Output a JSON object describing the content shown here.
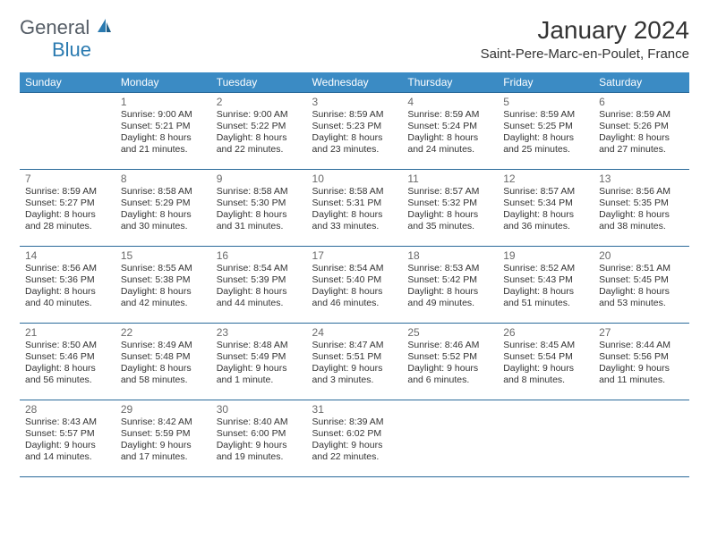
{
  "brand": {
    "general": "General",
    "blue": "Blue"
  },
  "title": "January 2024",
  "location": "Saint-Pere-Marc-en-Poulet, France",
  "colors": {
    "header_bg": "#3b8bc4",
    "header_text": "#ffffff",
    "rule": "#2a6a9a",
    "daynum": "#6a6a6a",
    "body_text": "#333333",
    "logo_gray": "#555d66",
    "logo_blue": "#2a7ab0",
    "page_bg": "#ffffff"
  },
  "typography": {
    "title_fontsize": 28,
    "location_fontsize": 15,
    "dayheader_fontsize": 12,
    "daynum_fontsize": 12,
    "cell_fontsize": 10.5
  },
  "day_headers": [
    "Sunday",
    "Monday",
    "Tuesday",
    "Wednesday",
    "Thursday",
    "Friday",
    "Saturday"
  ],
  "weeks": [
    [
      null,
      {
        "n": "1",
        "sr": "Sunrise: 9:00 AM",
        "ss": "Sunset: 5:21 PM",
        "d1": "Daylight: 8 hours",
        "d2": "and 21 minutes."
      },
      {
        "n": "2",
        "sr": "Sunrise: 9:00 AM",
        "ss": "Sunset: 5:22 PM",
        "d1": "Daylight: 8 hours",
        "d2": "and 22 minutes."
      },
      {
        "n": "3",
        "sr": "Sunrise: 8:59 AM",
        "ss": "Sunset: 5:23 PM",
        "d1": "Daylight: 8 hours",
        "d2": "and 23 minutes."
      },
      {
        "n": "4",
        "sr": "Sunrise: 8:59 AM",
        "ss": "Sunset: 5:24 PM",
        "d1": "Daylight: 8 hours",
        "d2": "and 24 minutes."
      },
      {
        "n": "5",
        "sr": "Sunrise: 8:59 AM",
        "ss": "Sunset: 5:25 PM",
        "d1": "Daylight: 8 hours",
        "d2": "and 25 minutes."
      },
      {
        "n": "6",
        "sr": "Sunrise: 8:59 AM",
        "ss": "Sunset: 5:26 PM",
        "d1": "Daylight: 8 hours",
        "d2": "and 27 minutes."
      }
    ],
    [
      {
        "n": "7",
        "sr": "Sunrise: 8:59 AM",
        "ss": "Sunset: 5:27 PM",
        "d1": "Daylight: 8 hours",
        "d2": "and 28 minutes."
      },
      {
        "n": "8",
        "sr": "Sunrise: 8:58 AM",
        "ss": "Sunset: 5:29 PM",
        "d1": "Daylight: 8 hours",
        "d2": "and 30 minutes."
      },
      {
        "n": "9",
        "sr": "Sunrise: 8:58 AM",
        "ss": "Sunset: 5:30 PM",
        "d1": "Daylight: 8 hours",
        "d2": "and 31 minutes."
      },
      {
        "n": "10",
        "sr": "Sunrise: 8:58 AM",
        "ss": "Sunset: 5:31 PM",
        "d1": "Daylight: 8 hours",
        "d2": "and 33 minutes."
      },
      {
        "n": "11",
        "sr": "Sunrise: 8:57 AM",
        "ss": "Sunset: 5:32 PM",
        "d1": "Daylight: 8 hours",
        "d2": "and 35 minutes."
      },
      {
        "n": "12",
        "sr": "Sunrise: 8:57 AM",
        "ss": "Sunset: 5:34 PM",
        "d1": "Daylight: 8 hours",
        "d2": "and 36 minutes."
      },
      {
        "n": "13",
        "sr": "Sunrise: 8:56 AM",
        "ss": "Sunset: 5:35 PM",
        "d1": "Daylight: 8 hours",
        "d2": "and 38 minutes."
      }
    ],
    [
      {
        "n": "14",
        "sr": "Sunrise: 8:56 AM",
        "ss": "Sunset: 5:36 PM",
        "d1": "Daylight: 8 hours",
        "d2": "and 40 minutes."
      },
      {
        "n": "15",
        "sr": "Sunrise: 8:55 AM",
        "ss": "Sunset: 5:38 PM",
        "d1": "Daylight: 8 hours",
        "d2": "and 42 minutes."
      },
      {
        "n": "16",
        "sr": "Sunrise: 8:54 AM",
        "ss": "Sunset: 5:39 PM",
        "d1": "Daylight: 8 hours",
        "d2": "and 44 minutes."
      },
      {
        "n": "17",
        "sr": "Sunrise: 8:54 AM",
        "ss": "Sunset: 5:40 PM",
        "d1": "Daylight: 8 hours",
        "d2": "and 46 minutes."
      },
      {
        "n": "18",
        "sr": "Sunrise: 8:53 AM",
        "ss": "Sunset: 5:42 PM",
        "d1": "Daylight: 8 hours",
        "d2": "and 49 minutes."
      },
      {
        "n": "19",
        "sr": "Sunrise: 8:52 AM",
        "ss": "Sunset: 5:43 PM",
        "d1": "Daylight: 8 hours",
        "d2": "and 51 minutes."
      },
      {
        "n": "20",
        "sr": "Sunrise: 8:51 AM",
        "ss": "Sunset: 5:45 PM",
        "d1": "Daylight: 8 hours",
        "d2": "and 53 minutes."
      }
    ],
    [
      {
        "n": "21",
        "sr": "Sunrise: 8:50 AM",
        "ss": "Sunset: 5:46 PM",
        "d1": "Daylight: 8 hours",
        "d2": "and 56 minutes."
      },
      {
        "n": "22",
        "sr": "Sunrise: 8:49 AM",
        "ss": "Sunset: 5:48 PM",
        "d1": "Daylight: 8 hours",
        "d2": "and 58 minutes."
      },
      {
        "n": "23",
        "sr": "Sunrise: 8:48 AM",
        "ss": "Sunset: 5:49 PM",
        "d1": "Daylight: 9 hours",
        "d2": "and 1 minute."
      },
      {
        "n": "24",
        "sr": "Sunrise: 8:47 AM",
        "ss": "Sunset: 5:51 PM",
        "d1": "Daylight: 9 hours",
        "d2": "and 3 minutes."
      },
      {
        "n": "25",
        "sr": "Sunrise: 8:46 AM",
        "ss": "Sunset: 5:52 PM",
        "d1": "Daylight: 9 hours",
        "d2": "and 6 minutes."
      },
      {
        "n": "26",
        "sr": "Sunrise: 8:45 AM",
        "ss": "Sunset: 5:54 PM",
        "d1": "Daylight: 9 hours",
        "d2": "and 8 minutes."
      },
      {
        "n": "27",
        "sr": "Sunrise: 8:44 AM",
        "ss": "Sunset: 5:56 PM",
        "d1": "Daylight: 9 hours",
        "d2": "and 11 minutes."
      }
    ],
    [
      {
        "n": "28",
        "sr": "Sunrise: 8:43 AM",
        "ss": "Sunset: 5:57 PM",
        "d1": "Daylight: 9 hours",
        "d2": "and 14 minutes."
      },
      {
        "n": "29",
        "sr": "Sunrise: 8:42 AM",
        "ss": "Sunset: 5:59 PM",
        "d1": "Daylight: 9 hours",
        "d2": "and 17 minutes."
      },
      {
        "n": "30",
        "sr": "Sunrise: 8:40 AM",
        "ss": "Sunset: 6:00 PM",
        "d1": "Daylight: 9 hours",
        "d2": "and 19 minutes."
      },
      {
        "n": "31",
        "sr": "Sunrise: 8:39 AM",
        "ss": "Sunset: 6:02 PM",
        "d1": "Daylight: 9 hours",
        "d2": "and 22 minutes."
      },
      null,
      null,
      null
    ]
  ]
}
